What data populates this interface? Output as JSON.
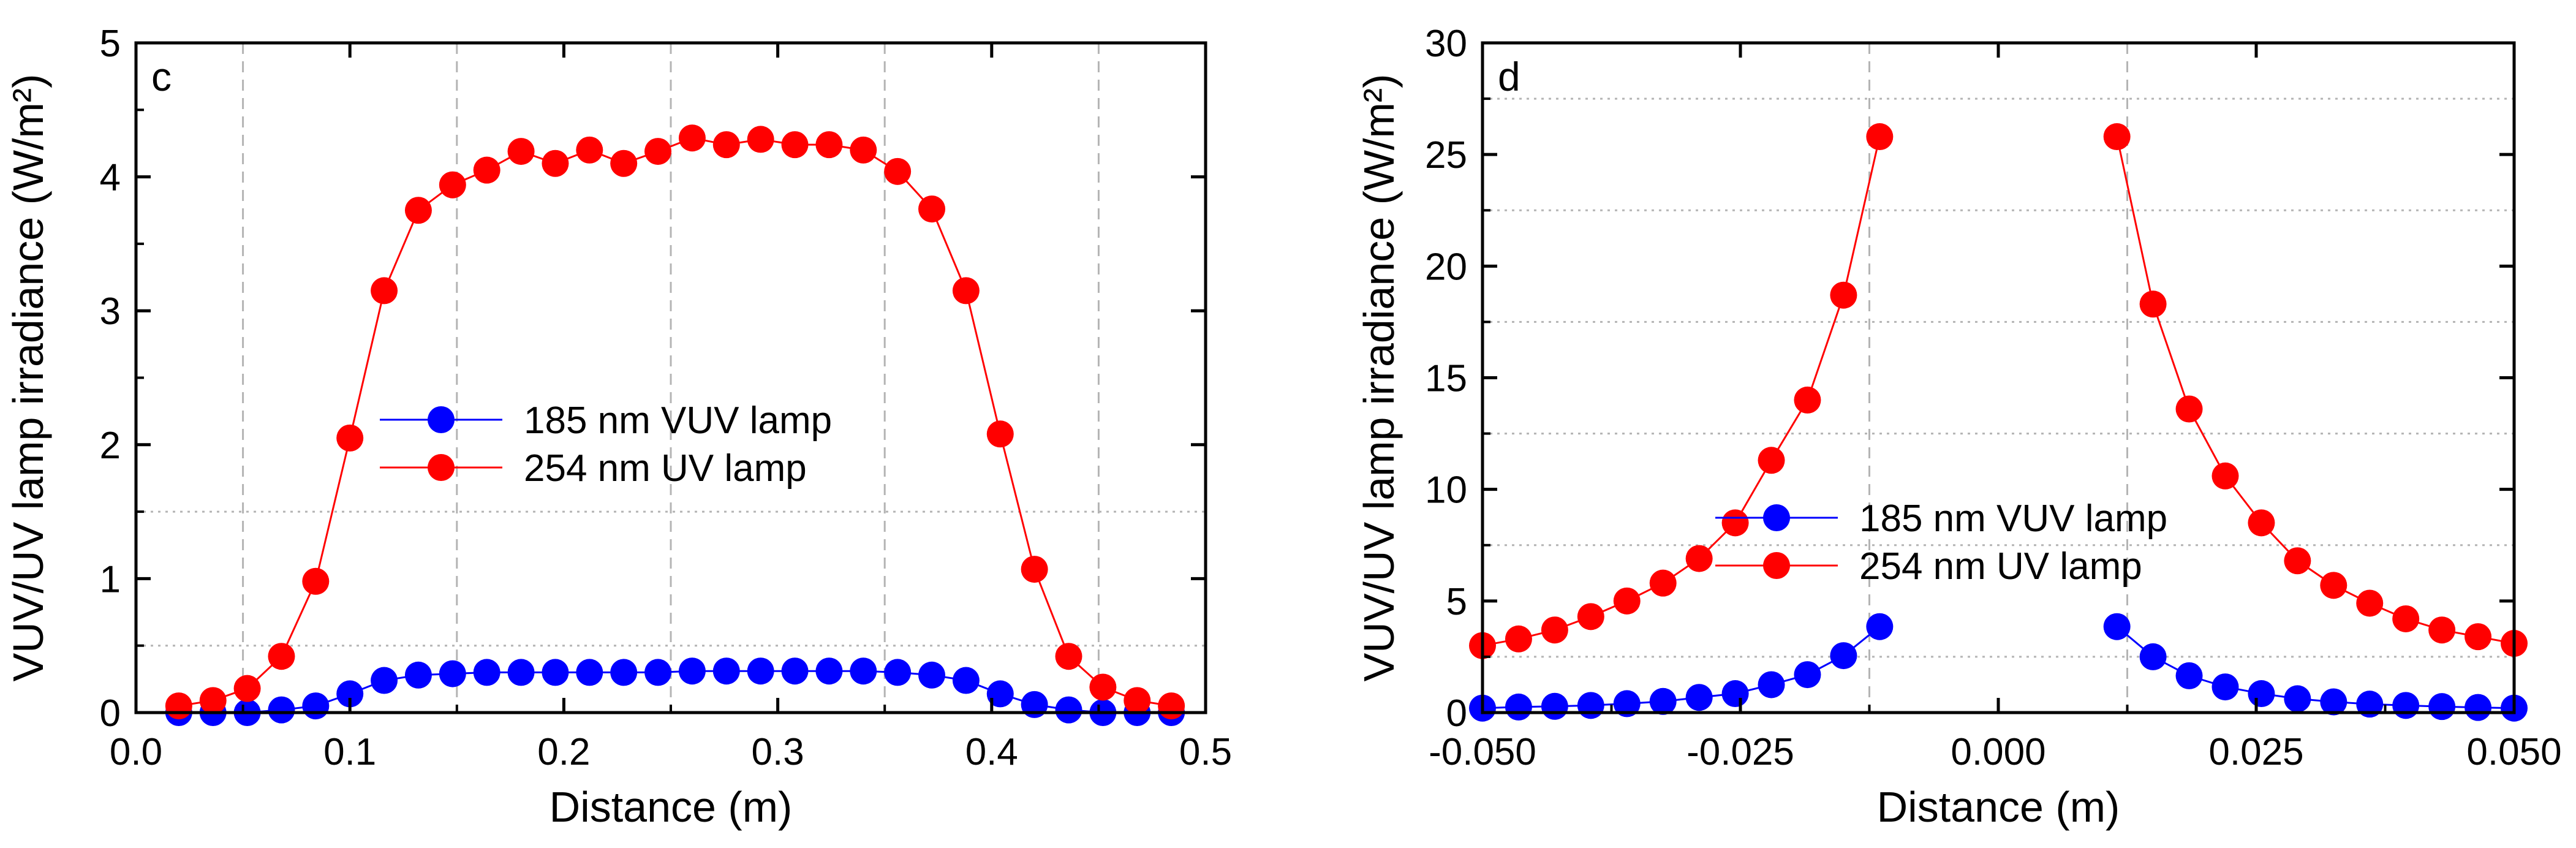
{
  "colors": {
    "series_185": "#0000ff",
    "series_254": "#ff0000",
    "axis": "#000000",
    "grid": "#b4b4b4"
  },
  "chart_data": [
    {
      "type": "line",
      "panel_label": "c",
      "xlabel": "Distance (m)",
      "ylabel": "VUV/UV lamp irradiance (W/m²)",
      "xlim": [
        0.0,
        0.5
      ],
      "ylim": [
        0,
        5
      ],
      "xticks": [
        0.0,
        0.1,
        0.2,
        0.3,
        0.4,
        0.5
      ],
      "xtick_labels": [
        "0.0",
        "0.1",
        "0.2",
        "0.3",
        "0.4",
        "0.5"
      ],
      "yticks": [
        0,
        1,
        2,
        3,
        4,
        5
      ],
      "ytick_labels": [
        "0",
        "1",
        "2",
        "3",
        "4",
        "5"
      ],
      "grid": {
        "vertical": [
          0.05,
          0.15,
          0.25,
          0.35,
          0.45
        ],
        "horizontal": [
          0.5,
          1.5
        ]
      },
      "legend_position": "center",
      "series": [
        {
          "name": "185 nm VUV lamp",
          "color": "#0000ff",
          "segments": [
            [
              [
                0.02,
                0.0
              ],
              [
                0.036,
                0.0
              ],
              [
                0.052,
                0.0
              ],
              [
                0.068,
                0.02
              ],
              [
                0.084,
                0.05
              ],
              [
                0.1,
                0.14
              ],
              [
                0.116,
                0.24
              ],
              [
                0.132,
                0.28
              ],
              [
                0.148,
                0.29
              ],
              [
                0.164,
                0.3
              ],
              [
                0.18,
                0.3
              ],
              [
                0.196,
                0.3
              ],
              [
                0.212,
                0.3
              ],
              [
                0.228,
                0.3
              ],
              [
                0.244,
                0.3
              ],
              [
                0.26,
                0.31
              ],
              [
                0.276,
                0.31
              ],
              [
                0.292,
                0.31
              ],
              [
                0.308,
                0.31
              ],
              [
                0.324,
                0.31
              ],
              [
                0.34,
                0.31
              ],
              [
                0.356,
                0.3
              ],
              [
                0.372,
                0.28
              ],
              [
                0.388,
                0.24
              ],
              [
                0.404,
                0.14
              ],
              [
                0.42,
                0.06
              ],
              [
                0.436,
                0.02
              ],
              [
                0.452,
                0.0
              ],
              [
                0.468,
                0.0
              ],
              [
                0.484,
                0.0
              ]
            ]
          ]
        },
        {
          "name": "254 nm UV lamp",
          "color": "#ff0000",
          "segments": [
            [
              [
                0.02,
                0.05
              ],
              [
                0.036,
                0.09
              ],
              [
                0.052,
                0.18
              ],
              [
                0.068,
                0.42
              ],
              [
                0.084,
                0.98
              ],
              [
                0.1,
                2.05
              ],
              [
                0.116,
                3.15
              ],
              [
                0.132,
                3.75
              ],
              [
                0.148,
                3.94
              ],
              [
                0.164,
                4.05
              ],
              [
                0.18,
                4.19
              ],
              [
                0.196,
                4.1
              ],
              [
                0.212,
                4.2
              ],
              [
                0.228,
                4.1
              ],
              [
                0.244,
                4.19
              ],
              [
                0.26,
                4.29
              ],
              [
                0.276,
                4.24
              ],
              [
                0.292,
                4.28
              ],
              [
                0.308,
                4.24
              ],
              [
                0.324,
                4.24
              ],
              [
                0.34,
                4.2
              ],
              [
                0.356,
                4.04
              ],
              [
                0.372,
                3.76
              ],
              [
                0.388,
                3.15
              ],
              [
                0.404,
                2.08
              ],
              [
                0.42,
                1.07
              ],
              [
                0.436,
                0.42
              ],
              [
                0.452,
                0.19
              ],
              [
                0.468,
                0.09
              ],
              [
                0.484,
                0.05
              ]
            ]
          ]
        }
      ]
    },
    {
      "type": "line",
      "panel_label": "d",
      "xlabel": "Distance (m)",
      "ylabel": "VUV/UV lamp irradiance (W/m²)",
      "xlim": [
        -0.05,
        0.05
      ],
      "ylim": [
        0,
        30
      ],
      "xticks": [
        -0.05,
        -0.025,
        0.0,
        0.025,
        0.05
      ],
      "xtick_labels": [
        "-0.050",
        "-0.025",
        "0.000",
        "0.025",
        "0.050"
      ],
      "yticks": [
        0,
        5,
        10,
        15,
        20,
        25,
        30
      ],
      "ytick_labels": [
        "0",
        "5",
        "10",
        "15",
        "20",
        "25",
        "30"
      ],
      "grid": {
        "vertical": [
          -0.0125,
          0.0125
        ],
        "horizontal": [
          2.5,
          7.5,
          12.5,
          17.5,
          22.5,
          27.5
        ]
      },
      "legend_position": "center",
      "series": [
        {
          "name": "185 nm VUV lamp",
          "color": "#0000ff",
          "segments": [
            [
              [
                -0.05,
                0.2
              ],
              [
                -0.0465,
                0.25
              ],
              [
                -0.043,
                0.28
              ],
              [
                -0.0395,
                0.32
              ],
              [
                -0.036,
                0.4
              ],
              [
                -0.0325,
                0.5
              ],
              [
                -0.029,
                0.68
              ],
              [
                -0.0255,
                0.85
              ],
              [
                -0.022,
                1.25
              ],
              [
                -0.0185,
                1.7
              ],
              [
                -0.015,
                2.55
              ],
              [
                -0.0115,
                3.85
              ]
            ],
            [
              [
                0.0115,
                3.85
              ],
              [
                0.015,
                2.5
              ],
              [
                0.0185,
                1.65
              ],
              [
                0.022,
                1.15
              ],
              [
                0.0255,
                0.85
              ],
              [
                0.029,
                0.62
              ],
              [
                0.0325,
                0.48
              ],
              [
                0.036,
                0.38
              ],
              [
                0.0395,
                0.32
              ],
              [
                0.043,
                0.27
              ],
              [
                0.0465,
                0.23
              ],
              [
                0.05,
                0.2
              ]
            ]
          ]
        },
        {
          "name": "254 nm UV lamp",
          "color": "#ff0000",
          "segments": [
            [
              [
                -0.05,
                3.0
              ],
              [
                -0.0465,
                3.3
              ],
              [
                -0.043,
                3.7
              ],
              [
                -0.0395,
                4.3
              ],
              [
                -0.036,
                5.0
              ],
              [
                -0.0325,
                5.8
              ],
              [
                -0.029,
                6.9
              ],
              [
                -0.0255,
                8.5
              ],
              [
                -0.022,
                11.3
              ],
              [
                -0.0185,
                14.0
              ],
              [
                -0.015,
                18.7
              ],
              [
                -0.0115,
                25.8
              ]
            ],
            [
              [
                0.0115,
                25.8
              ],
              [
                0.015,
                18.3
              ],
              [
                0.0185,
                13.6
              ],
              [
                0.022,
                10.6
              ],
              [
                0.0255,
                8.5
              ],
              [
                0.029,
                6.8
              ],
              [
                0.0325,
                5.7
              ],
              [
                0.036,
                4.9
              ],
              [
                0.0395,
                4.2
              ],
              [
                0.043,
                3.7
              ],
              [
                0.0465,
                3.4
              ],
              [
                0.05,
                3.1
              ]
            ]
          ]
        }
      ]
    }
  ]
}
